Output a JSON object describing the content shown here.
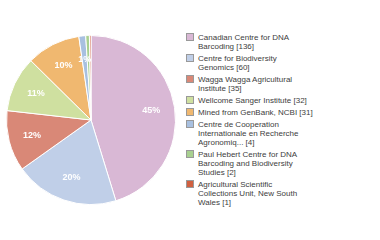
{
  "chart_data": {
    "type": "pie",
    "categories": [
      "Canadian Centre for DNA\nBarcoding [136]",
      "Centre for Biodiversity\nGenomics [60]",
      "Wagga Wagga Agricultural\nInstitute [35]",
      "Wellcome Sanger Institute [32]",
      "Mined from GenBank, NCBI [31]",
      "Centre de Cooperation\nInternationale en Recherche\nAgronomiq... [4]",
      "Paul Hebert Centre for DNA\nBarcoding and Biodiversity\nStudies [2]",
      "Agricultural Scientific\nCollections Unit, New South\nWales [1]"
    ],
    "values": [
      45.2,
      19.9,
      11.6,
      10.6,
      10.3,
      1.3,
      0.7,
      0.3
    ],
    "value_labels": [
      "45%",
      "20%",
      "12%",
      "11%",
      "10%",
      "1%",
      null,
      null
    ],
    "data_labels": true,
    "colors": [
      "#d9b8d5",
      "#c0cfe8",
      "#d98877",
      "#cfe0a0",
      "#f0b870",
      "#a8c0e0",
      "#a8d090",
      "#d06040"
    ],
    "legend": "right"
  }
}
